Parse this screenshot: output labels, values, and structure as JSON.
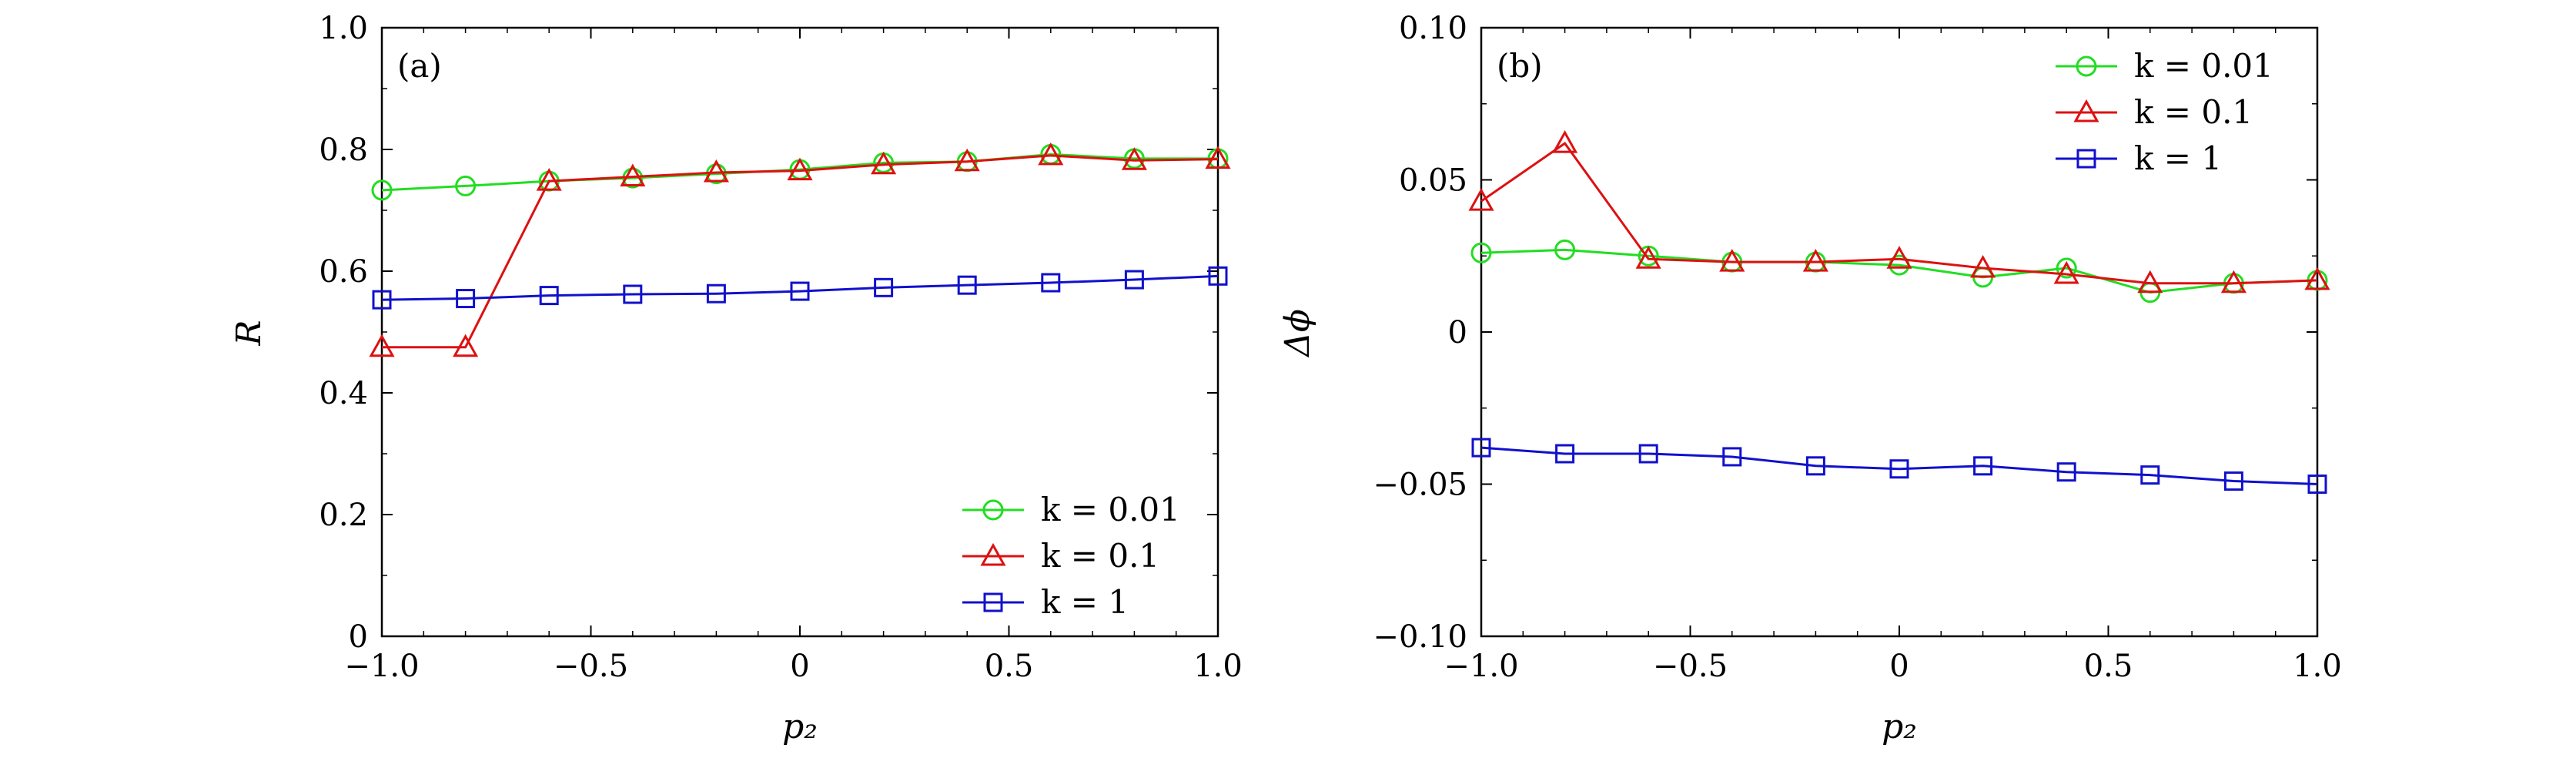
{
  "chart_data": [
    {
      "type": "line",
      "panel_label": "(a)",
      "xlabel": "p₂",
      "ylabel": "R",
      "xlim": [
        -1.0,
        1.0
      ],
      "ylim": [
        0,
        1.0
      ],
      "x_ticks": [
        -1.0,
        -0.5,
        0,
        0.5,
        1.0
      ],
      "x_tick_labels": [
        "−1.0",
        "−0.5",
        "0",
        "0.5",
        "1.0"
      ],
      "y_ticks": [
        0,
        0.2,
        0.4,
        0.6,
        0.8,
        1.0
      ],
      "y_tick_labels": [
        "0",
        "0.2",
        "0.4",
        "0.6",
        "0.8",
        "1.0"
      ],
      "grid": false,
      "legend_position": "bottom-right",
      "x": [
        -1.0,
        -0.8,
        -0.6,
        -0.4,
        -0.2,
        0,
        0.2,
        0.4,
        0.6,
        0.8,
        1.0
      ],
      "series": [
        {
          "name": "k = 0.01",
          "color": "#22dd22",
          "marker": "circle",
          "values": [
            0.733,
            0.74,
            0.748,
            0.753,
            0.76,
            0.767,
            0.778,
            0.78,
            0.792,
            0.785,
            0.785
          ]
        },
        {
          "name": "k = 0.1",
          "color": "#dd1111",
          "marker": "triangle",
          "values": [
            0.475,
            0.475,
            0.748,
            0.755,
            0.762,
            0.765,
            0.775,
            0.78,
            0.79,
            0.782,
            0.784
          ]
        },
        {
          "name": "k = 1",
          "color": "#1111cc",
          "marker": "square",
          "values": [
            0.553,
            0.555,
            0.56,
            0.562,
            0.563,
            0.567,
            0.573,
            0.577,
            0.581,
            0.586,
            0.592
          ]
        }
      ]
    },
    {
      "type": "line",
      "panel_label": "(b)",
      "xlabel": "p₂",
      "ylabel": "Δϕ",
      "xlim": [
        -1.0,
        1.0
      ],
      "ylim": [
        -0.1,
        0.1
      ],
      "x_ticks": [
        -1.0,
        -0.5,
        0,
        0.5,
        1.0
      ],
      "x_tick_labels": [
        "−1.0",
        "−0.5",
        "0",
        "0.5",
        "1.0"
      ],
      "y_ticks": [
        -0.1,
        -0.05,
        0,
        0.05,
        0.1
      ],
      "y_tick_labels": [
        "−0.10",
        "−0.05",
        "0",
        "0.05",
        "0.10"
      ],
      "grid": false,
      "legend_position": "top-right",
      "x": [
        -1.0,
        -0.8,
        -0.6,
        -0.4,
        -0.2,
        0,
        0.2,
        0.4,
        0.6,
        0.8,
        1.0
      ],
      "series": [
        {
          "name": "k = 0.01",
          "color": "#22dd22",
          "marker": "circle",
          "values": [
            0.026,
            0.027,
            0.025,
            0.023,
            0.023,
            0.022,
            0.018,
            0.021,
            0.013,
            0.016,
            0.017
          ]
        },
        {
          "name": "k = 0.1",
          "color": "#dd1111",
          "marker": "triangle",
          "values": [
            0.043,
            0.062,
            0.024,
            0.023,
            0.023,
            0.024,
            0.021,
            0.019,
            0.016,
            0.016,
            0.017
          ]
        },
        {
          "name": "k = 1",
          "color": "#1111cc",
          "marker": "square",
          "values": [
            -0.038,
            -0.04,
            -0.04,
            -0.041,
            -0.044,
            -0.045,
            -0.044,
            -0.046,
            -0.047,
            -0.049,
            -0.05
          ]
        }
      ]
    }
  ]
}
